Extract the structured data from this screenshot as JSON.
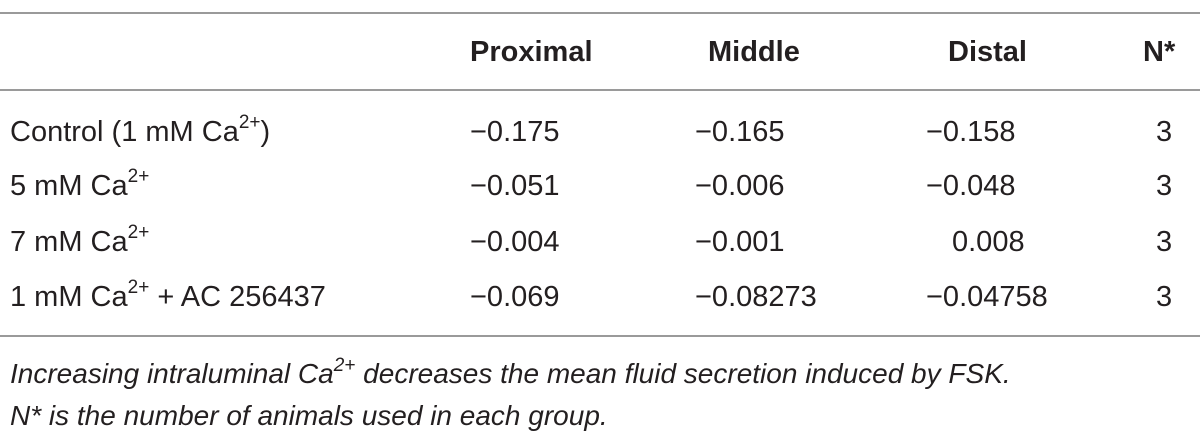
{
  "table": {
    "headers": {
      "label": "",
      "proximal": "Proximal",
      "middle": "Middle",
      "distal": "Distal",
      "n": "N*"
    },
    "rows": [
      {
        "label_pre": "Control (1 mM Ca",
        "label_sup": "2+",
        "label_post": ")",
        "proximal": "−0.175",
        "middle": "−0.165",
        "distal": "−0.158",
        "n": "3"
      },
      {
        "label_pre": "5 mM Ca",
        "label_sup": "2+",
        "label_post": "",
        "proximal": "−0.051",
        "middle": "−0.006",
        "distal": "−0.048",
        "n": "3"
      },
      {
        "label_pre": "7 mM Ca",
        "label_sup": "2+",
        "label_post": "",
        "proximal": "−0.004",
        "middle": "−0.001",
        "distal": "0.008",
        "n": "3"
      },
      {
        "label_pre": "1 mM Ca",
        "label_sup": "2+",
        "label_post": " + AC 256437",
        "proximal": "−0.069",
        "middle": "−0.08273",
        "distal": "−0.04758",
        "n": "3"
      }
    ]
  },
  "caption": {
    "line1_pre": "Increasing intraluminal Ca",
    "line1_sup": "2+",
    "line1_post": " decreases the mean fluid secretion induced by FSK.",
    "line2": "N* is the number of animals used in each group."
  }
}
